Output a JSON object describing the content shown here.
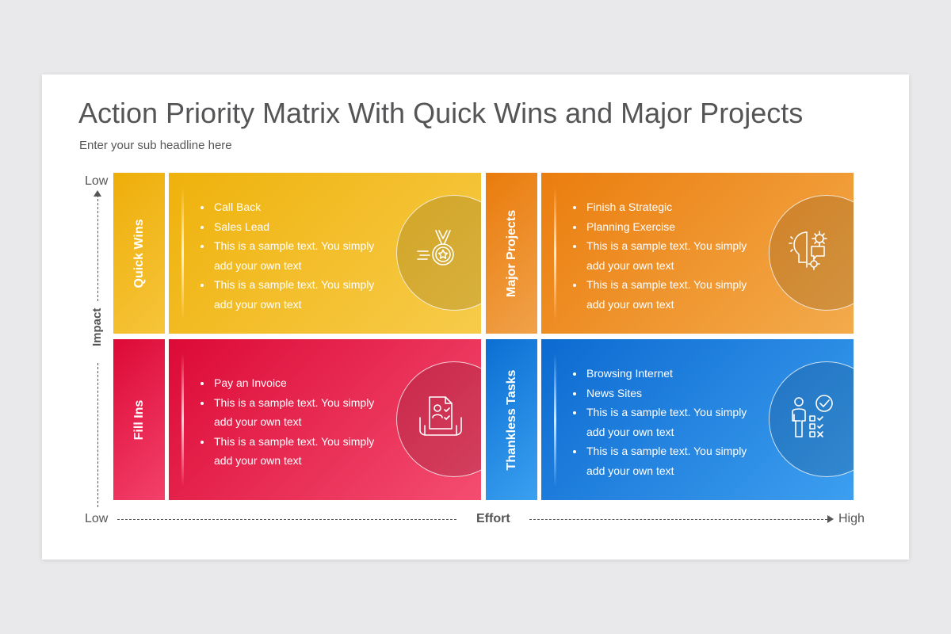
{
  "title": "Action Priority Matrix With Quick Wins and Major Projects",
  "subtitle": "Enter your sub headline here",
  "axes": {
    "impact_label": "Impact",
    "effort_label": "Effort",
    "top_low": "Low",
    "bottom_low": "Low",
    "right_high": "High"
  },
  "quadrants": {
    "quick_wins": {
      "label": "Quick Wins",
      "icon": "medal-icon",
      "color": "#F0B210",
      "items": [
        "Call Back",
        "Sales Lead",
        "This is a sample text. You simply add your own text",
        "This is a sample text. You simply add your own text"
      ]
    },
    "major_projects": {
      "label": "Major Projects",
      "icon": "brain-gear-icon",
      "color": "#EC820F",
      "items": [
        "Finish a Strategic",
        "Planning Exercise",
        "This is a sample text. You simply add your own text",
        "This is a sample text. You simply add your own text"
      ]
    },
    "fill_ins": {
      "label": "Fill Ins",
      "icon": "invoice-icon",
      "color": "#E01A45",
      "items": [
        "Pay an Invoice",
        "This is a sample text. You simply add your own text",
        "This is a sample text. You simply add your own text"
      ]
    },
    "thankless_tasks": {
      "label": "Thankless Tasks",
      "icon": "person-checklist-icon",
      "color": "#1478DC",
      "items": [
        "Browsing Internet",
        "News Sites",
        "This is a sample text. You simply add your own text",
        "This is a sample text. You simply add your own text"
      ]
    }
  }
}
